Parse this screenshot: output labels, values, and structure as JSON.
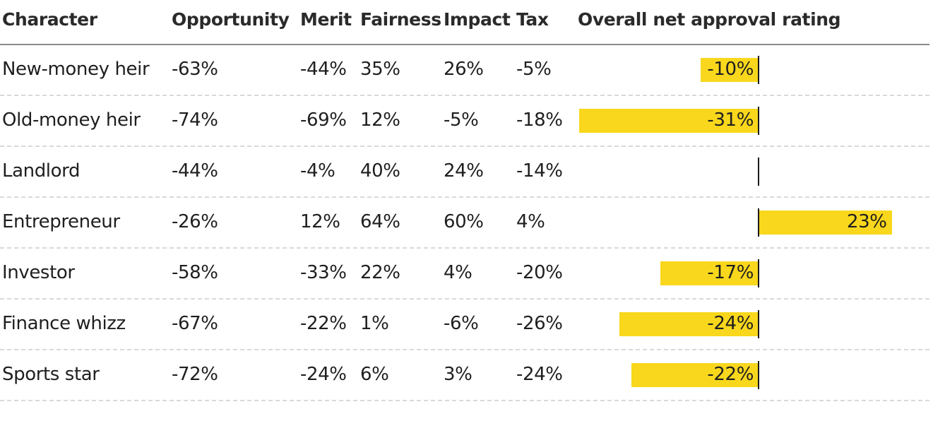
{
  "chart_data": {
    "type": "table",
    "columns": [
      "Character",
      "Opportunity",
      "Merit",
      "Fairness",
      "Impact",
      "Tax",
      "Overall net approval rating"
    ],
    "rows": [
      {
        "character": "New-money heir",
        "opportunity": "-63%",
        "merit": "-44%",
        "fairness": "35%",
        "impact": "26%",
        "tax": "-5%",
        "overall": -10,
        "overall_label": "-10%"
      },
      {
        "character": "Old-money heir",
        "opportunity": "-74%",
        "merit": "-69%",
        "fairness": "12%",
        "impact": "-5%",
        "tax": "-18%",
        "overall": -31,
        "overall_label": "-31%"
      },
      {
        "character": "Landlord",
        "opportunity": "-44%",
        "merit": "-4%",
        "fairness": "40%",
        "impact": "24%",
        "tax": "-14%",
        "overall": 0,
        "overall_label": ""
      },
      {
        "character": "Entrepreneur",
        "opportunity": "-26%",
        "merit": "12%",
        "fairness": "64%",
        "impact": "60%",
        "tax": "4%",
        "overall": 23,
        "overall_label": "23%"
      },
      {
        "character": "Investor",
        "opportunity": "-58%",
        "merit": "-33%",
        "fairness": "22%",
        "impact": "4%",
        "tax": "-20%",
        "overall": -17,
        "overall_label": "-17%"
      },
      {
        "character": "Finance whizz",
        "opportunity": "-67%",
        "merit": "-22%",
        "fairness": "1%",
        "impact": "-6%",
        "tax": "-26%",
        "overall": -24,
        "overall_label": "-24%"
      },
      {
        "character": "Sports star",
        "opportunity": "-72%",
        "merit": "-24%",
        "fairness": "6%",
        "impact": "3%",
        "tax": "-24%",
        "overall": -22,
        "overall_label": "-22%"
      }
    ],
    "bar_color": "#f9d71c",
    "bar_range": [
      -31,
      23
    ]
  }
}
